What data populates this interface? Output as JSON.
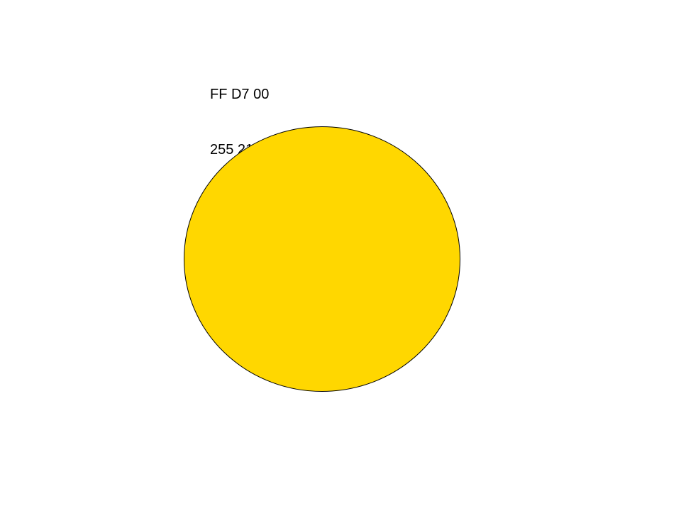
{
  "color": {
    "hex_text": "FF D7 00",
    "rgb_text": "255 215   0",
    "fill": "#FFD700",
    "stroke": "#000000"
  }
}
